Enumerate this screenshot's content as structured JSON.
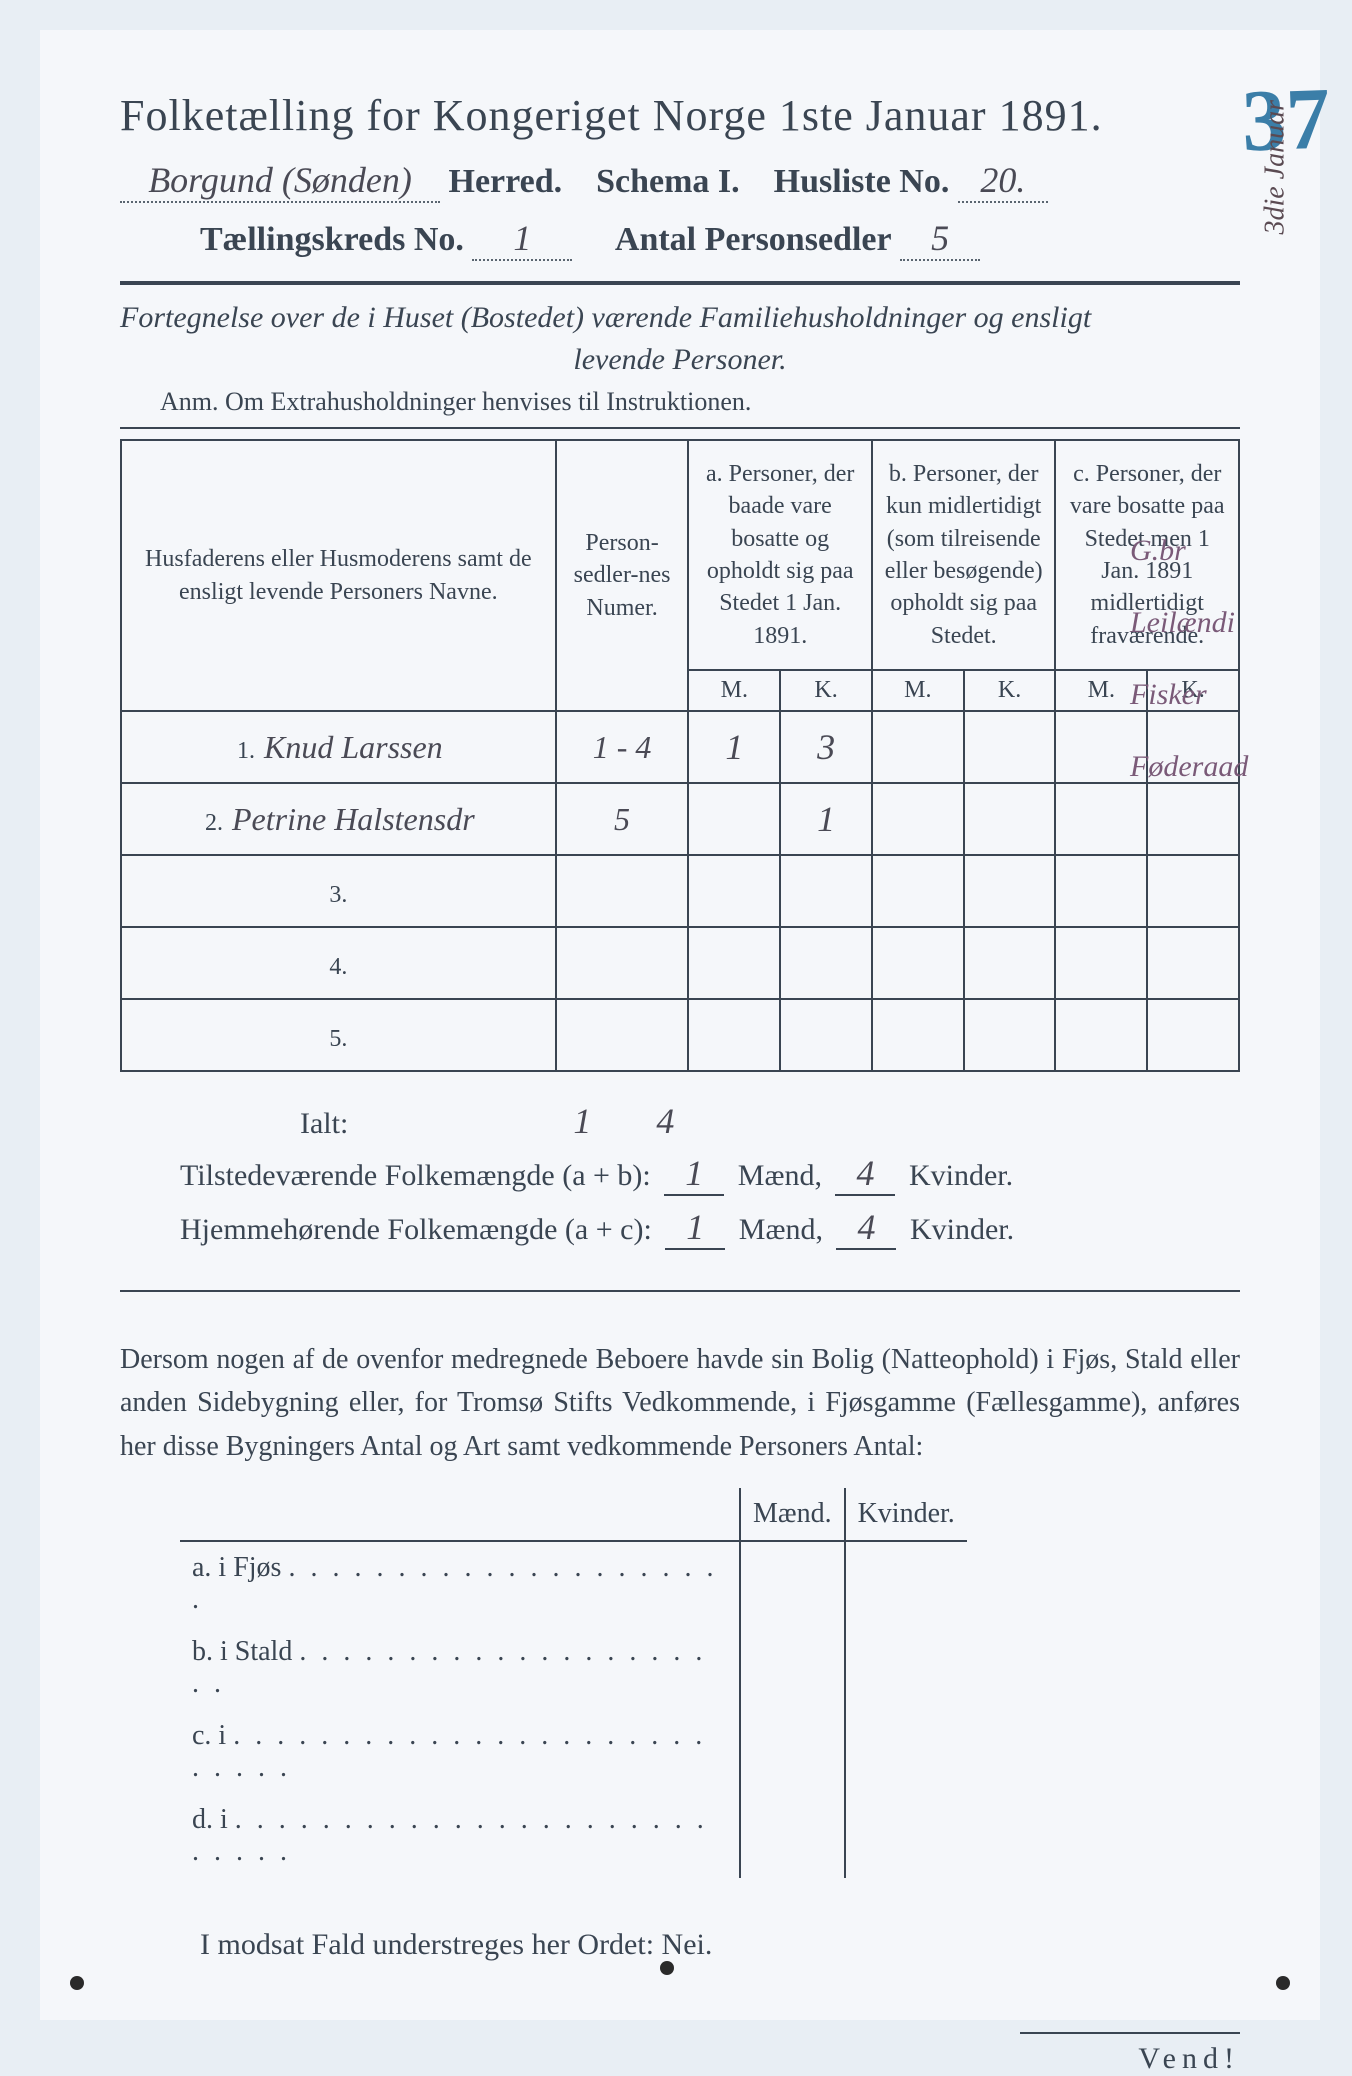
{
  "colors": {
    "page_bg": "#f5f7fa",
    "outer_bg": "#e8eef4",
    "text": "#3a4552",
    "rule": "#3a4552",
    "corner_number": "#3b7ea8",
    "handwriting": "#4a4a55",
    "margin_note": "#7a5a78"
  },
  "corner_number": "37",
  "side_margin_note": "3die Januar",
  "header": {
    "title": "Folketælling for Kongeriget Norge 1ste Januar 1891.",
    "herred_hand": "Borgund (Sønden)",
    "herred_label": "Herred.",
    "schema_label": "Schema I.",
    "husliste_label": "Husliste No.",
    "husliste_no": "20.",
    "kreds_label": "Tællingskreds No.",
    "kreds_no": "1",
    "personsedler_label": "Antal Personsedler",
    "personsedler": "5"
  },
  "subtitle_line1": "Fortegnelse over de i Huset (Bostedet) værende Familiehusholdninger og ensligt",
  "subtitle_line2": "levende Personer.",
  "anm": "Anm. Om Extrahusholdninger henvises til Instruktionen.",
  "table": {
    "head_name": "Husfaderens eller Husmoderens samt de ensligt levende Personers Navne.",
    "head_num": "Person-sedler-nes Numer.",
    "head_a": "a.\nPersoner, der baade vare bosatte og opholdt sig paa Stedet 1 Jan. 1891.",
    "head_b": "b.\nPersoner, der kun midlertidigt (som tilreisende eller besøgende) opholdt sig paa Stedet.",
    "head_c": "c.\nPersoner, der vare bosatte paa Stedet men 1 Jan. 1891 midlertidigt fraværende.",
    "mk_m": "M.",
    "mk_k": "K.",
    "rows": [
      {
        "n": "1.",
        "name": "Knud Larssen",
        "num": "1 - 4",
        "a_m": "1",
        "a_k": "3",
        "b_m": "",
        "b_k": "",
        "c_m": "",
        "c_k": ""
      },
      {
        "n": "2.",
        "name": "Petrine Halstensdr",
        "num": "5",
        "a_m": "",
        "a_k": "1",
        "b_m": "",
        "b_k": "",
        "c_m": "",
        "c_k": ""
      },
      {
        "n": "3.",
        "name": "",
        "num": "",
        "a_m": "",
        "a_k": "",
        "b_m": "",
        "b_k": "",
        "c_m": "",
        "c_k": ""
      },
      {
        "n": "4.",
        "name": "",
        "num": "",
        "a_m": "",
        "a_k": "",
        "b_m": "",
        "b_k": "",
        "c_m": "",
        "c_k": ""
      },
      {
        "n": "5.",
        "name": "",
        "num": "",
        "a_m": "",
        "a_k": "",
        "b_m": "",
        "b_k": "",
        "c_m": "",
        "c_k": ""
      }
    ],
    "ialt_label": "Ialt:",
    "ialt_m": "1",
    "ialt_k": "4"
  },
  "margin_notes": [
    "G.br",
    "Leilændi",
    "Fisker",
    "Føderaad"
  ],
  "totals": {
    "line1_label": "Tilstedeværende Folkemængde (a + b):",
    "line2_label": "Hjemmehørende Folkemængde (a + c):",
    "maend": "Mænd,",
    "kvinder": "Kvinder.",
    "l1_m": "1",
    "l1_k": "4",
    "l2_m": "1",
    "l2_k": "4"
  },
  "paragraph": "Dersom nogen af de ovenfor medregnede Beboere havde sin Bolig (Natteophold) i Fjøs, Stald eller anden Sidebygning eller, for Tromsø Stifts Vedkommende, i Fjøsgamme (Fællesgamme), anføres her disse Bygningers Antal og Art samt vedkommende Personers Antal:",
  "abcd": {
    "a": "a.  i      Fjøs",
    "b": "b.  i      Stald",
    "c": "c.  i",
    "d": "d.  i",
    "maend": "Mænd.",
    "kvinder": "Kvinder."
  },
  "nei_line": "I modsat Fald understreges her Ordet: Nei.",
  "vend": "Vend!"
}
